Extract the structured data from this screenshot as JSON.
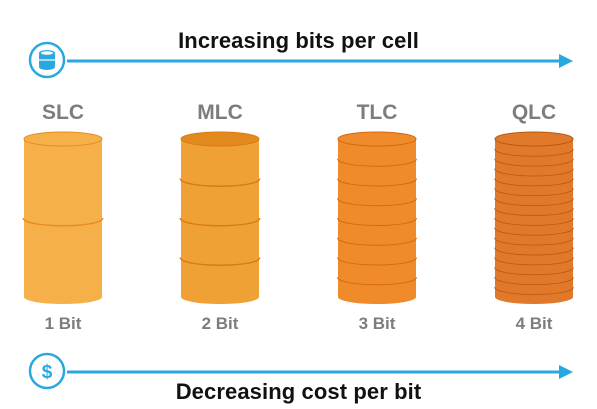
{
  "top_arrow": {
    "label": "Increasing bits per cell",
    "icon": "database-icon",
    "color": "#29a8e0"
  },
  "bottom_arrow": {
    "label": "Decreasing cost per bit",
    "icon": "dollar-icon",
    "icon_glyph": "$",
    "color": "#29a8e0"
  },
  "cells": [
    {
      "type": "SLC",
      "bits_label": "1 Bit",
      "layers": 2,
      "colors": {
        "body": "#f5b04a",
        "band": "#e58e1e",
        "top": "#f5b04a"
      }
    },
    {
      "type": "MLC",
      "bits_label": "2 Bit",
      "layers": 4,
      "colors": {
        "body": "#f0a136",
        "band": "#d97d10",
        "top": "#e38a1f"
      }
    },
    {
      "type": "TLC",
      "bits_label": "3 Bit",
      "layers": 8,
      "colors": {
        "body": "#ef8b2a",
        "band": "#d8680c",
        "top": "#ef8b2a"
      }
    },
    {
      "type": "QLC",
      "bits_label": "4 Bit",
      "layers": 16,
      "colors": {
        "body": "#e07a2a",
        "band": "#b9580e",
        "top": "#e07a2a"
      }
    }
  ]
}
